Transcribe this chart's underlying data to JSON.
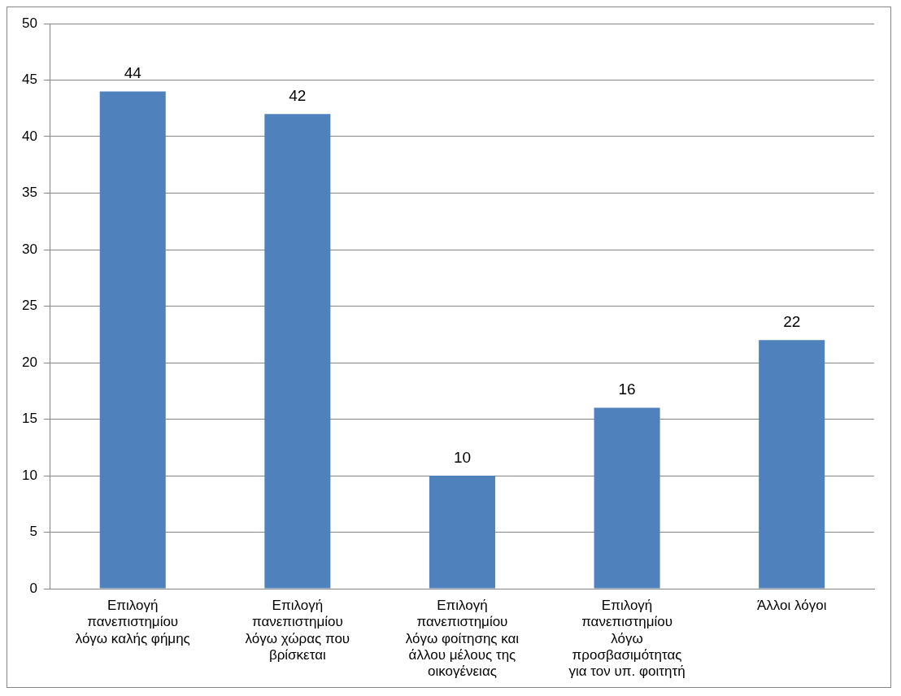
{
  "chart_data": {
    "type": "bar",
    "categories": [
      "Επιλογή πανεπιστημίου λόγω καλής φήμης",
      "Επιλογή πανεπιστημίου λόγω χώρας που βρίσκεται",
      "Επιλογή πανεπιστημίου λόγω φοίτησης και άλλου μέλους της οικογένειας",
      "Επιλογή πανεπιστημίου λόγω προσβασιμότητας για τον υπ. φοιτητή",
      "Άλλοι λόγοι"
    ],
    "values": [
      44,
      42,
      10,
      16,
      22
    ],
    "color": "#4f81bd",
    "ylim": [
      0,
      50
    ],
    "yticks": [
      0,
      5,
      10,
      15,
      20,
      25,
      30,
      35,
      40,
      45,
      50
    ],
    "grid": "y",
    "data_labels": true,
    "legend": false
  }
}
